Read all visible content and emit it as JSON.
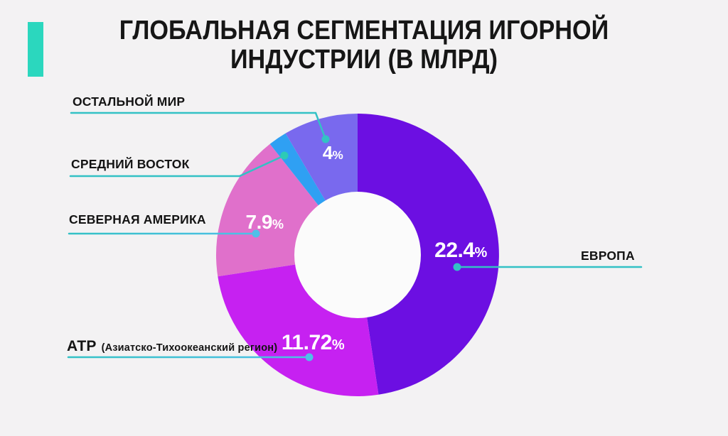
{
  "page": {
    "background": "#F3F2F3",
    "accent_bar_color": "#2BD7BE",
    "text_color": "#141414"
  },
  "header": {
    "title_lines": [
      "ГЛОБАЛЬНАЯ СЕГМЕНТАЦИЯ ИГОРНОЙ",
      "ИНДУСТРИИ (В МЛРД)"
    ]
  },
  "chart_data": {
    "type": "pie",
    "donut": true,
    "title": "ГЛОБАЛЬНАЯ СЕГМЕНТАЦИЯ ИГОРНОЙ ИНДУСТРИИ (В МЛРД)",
    "start_angle_deg": 0,
    "clockwise": true,
    "legend_position": "callout-labels",
    "segments": [
      {
        "id": "europe",
        "label": "ЕВРОПА",
        "value": 22.4,
        "display_value": "22.4",
        "display_suffix": "%",
        "color": "#6C0FE2"
      },
      {
        "id": "apac",
        "label": "АТР",
        "sublabel": "(Азиатско-Тихоокеанский регион)",
        "value": 11.72,
        "display_value": "11.72",
        "display_suffix": "%",
        "color": "#C621F1"
      },
      {
        "id": "north-america",
        "label": "СЕВЕРНАЯ АМЕРИКА",
        "value": 7.9,
        "display_value": "7.9",
        "display_suffix": "%",
        "color": "#E070CB"
      },
      {
        "id": "middle-east",
        "label": "СРЕДНИЙ ВОСТОК",
        "value": 1.0,
        "value_estimated_from_arc": true,
        "display_value": "",
        "display_suffix": "",
        "color": "#2FA0F3"
      },
      {
        "id": "rest-of-world",
        "label": "ОСТАЛЬНОЙ МИР",
        "value": 4,
        "display_value": "4",
        "display_suffix": "%",
        "color": "#7969EE"
      }
    ],
    "colors": {
      "hole": "#FBFBFB",
      "leader_teal": "#33C1C5",
      "leader_blue": "#4EC0E8",
      "dot_teal_green": "#2DCBB5",
      "value_text": "#FFFFFF"
    }
  }
}
